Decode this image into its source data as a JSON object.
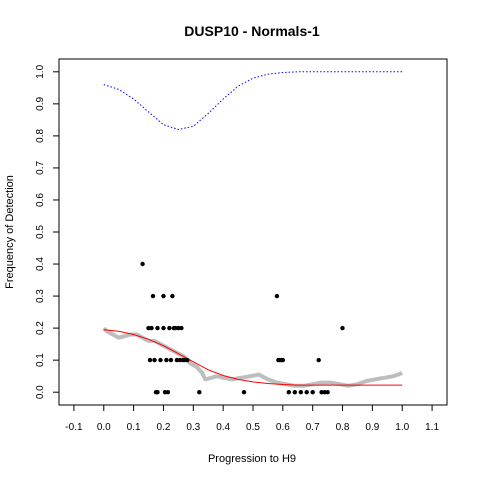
{
  "chart_data": {
    "type": "scatter",
    "title": "DUSP10 - Normals-1",
    "xlabel": "Progression to H9",
    "ylabel": "Frequency of Detection",
    "xlim": [
      -0.15,
      1.15
    ],
    "ylim": [
      -0.04,
      1.04
    ],
    "x_ticks": [
      "-0.1",
      "0.0",
      "0.1",
      "0.2",
      "0.3",
      "0.4",
      "0.5",
      "0.6",
      "0.7",
      "0.8",
      "0.9",
      "1.0",
      "1.1"
    ],
    "x_tick_values": [
      -0.1,
      0.0,
      0.1,
      0.2,
      0.3,
      0.4,
      0.5,
      0.6,
      0.7,
      0.8,
      0.9,
      1.0,
      1.1
    ],
    "y_ticks": [
      "0.0",
      "0.1",
      "0.2",
      "0.3",
      "0.4",
      "0.5",
      "0.6",
      "0.7",
      "0.8",
      "0.9",
      "1.0"
    ],
    "y_tick_values": [
      0.0,
      0.1,
      0.2,
      0.3,
      0.4,
      0.5,
      0.6,
      0.7,
      0.8,
      0.9,
      1.0
    ],
    "grid": false,
    "colors": {
      "points": "#000000",
      "smoothed": "#bebebe",
      "fit": "#ff0000",
      "upper_band": "#0000ff"
    },
    "series": [
      {
        "style": "points",
        "x": [
          0.13,
          0.15,
          0.155,
          0.16,
          0.165,
          0.17,
          0.175,
          0.18,
          0.18,
          0.19,
          0.2,
          0.2,
          0.205,
          0.21,
          0.215,
          0.22,
          0.225,
          0.23,
          0.235,
          0.24,
          0.245,
          0.25,
          0.255,
          0.26,
          0.265,
          0.27,
          0.28,
          0.32,
          0.47,
          0.58,
          0.585,
          0.59,
          0.595,
          0.6,
          0.62,
          0.64,
          0.66,
          0.68,
          0.7,
          0.72,
          0.73,
          0.74,
          0.75,
          0.8
        ],
        "y": [
          0.4,
          0.2,
          0.1,
          0.2,
          0.3,
          0.1,
          0.0,
          0.2,
          0.0,
          0.1,
          0.2,
          0.3,
          0.0,
          0.1,
          0.0,
          0.2,
          0.1,
          0.3,
          0.2,
          0.2,
          0.1,
          0.2,
          0.1,
          0.2,
          0.1,
          0.1,
          0.1,
          0.0,
          0.0,
          0.3,
          0.1,
          0.1,
          0.1,
          0.1,
          0.0,
          0.0,
          0.0,
          0.0,
          0.0,
          0.1,
          0.0,
          0.0,
          0.0,
          0.2
        ]
      },
      {
        "style": "smoothed",
        "x": [
          0.0,
          0.01,
          0.03,
          0.05,
          0.07,
          0.09,
          0.11,
          0.13,
          0.15,
          0.17,
          0.19,
          0.21,
          0.23,
          0.25,
          0.27,
          0.29,
          0.31,
          0.33,
          0.34,
          0.36,
          0.38,
          0.4,
          0.43,
          0.46,
          0.49,
          0.52,
          0.55,
          0.58,
          0.61,
          0.64,
          0.67,
          0.7,
          0.73,
          0.76,
          0.79,
          0.82,
          0.85,
          0.88,
          0.91,
          0.94,
          0.97,
          1.0
        ],
        "y": [
          0.2,
          0.19,
          0.18,
          0.17,
          0.175,
          0.18,
          0.18,
          0.17,
          0.16,
          0.16,
          0.15,
          0.14,
          0.13,
          0.12,
          0.11,
          0.09,
          0.08,
          0.06,
          0.04,
          0.045,
          0.05,
          0.045,
          0.04,
          0.045,
          0.05,
          0.055,
          0.04,
          0.03,
          0.025,
          0.02,
          0.02,
          0.025,
          0.03,
          0.03,
          0.025,
          0.02,
          0.025,
          0.035,
          0.04,
          0.045,
          0.05,
          0.06
        ]
      },
      {
        "style": "fit",
        "x": [
          0.0,
          0.05,
          0.1,
          0.15,
          0.2,
          0.25,
          0.3,
          0.35,
          0.4,
          0.45,
          0.5,
          0.55,
          0.6,
          0.65,
          0.7,
          0.75,
          0.8,
          0.85,
          0.9,
          0.95,
          1.0
        ],
        "y": [
          0.195,
          0.19,
          0.18,
          0.165,
          0.145,
          0.12,
          0.095,
          0.07,
          0.052,
          0.04,
          0.032,
          0.027,
          0.024,
          0.022,
          0.022,
          0.022,
          0.022,
          0.022,
          0.022,
          0.022,
          0.022
        ]
      },
      {
        "style": "upper_band",
        "x": [
          0.0,
          0.05,
          0.1,
          0.15,
          0.2,
          0.25,
          0.3,
          0.35,
          0.4,
          0.45,
          0.5,
          0.55,
          0.6,
          0.65,
          0.7,
          0.75,
          0.8,
          0.85,
          0.9,
          0.95,
          1.0
        ],
        "y": [
          0.96,
          0.945,
          0.915,
          0.875,
          0.835,
          0.82,
          0.83,
          0.87,
          0.915,
          0.955,
          0.98,
          0.993,
          0.998,
          1.0,
          1.0,
          1.0,
          1.0,
          1.0,
          1.0,
          1.0,
          1.0
        ]
      }
    ]
  }
}
